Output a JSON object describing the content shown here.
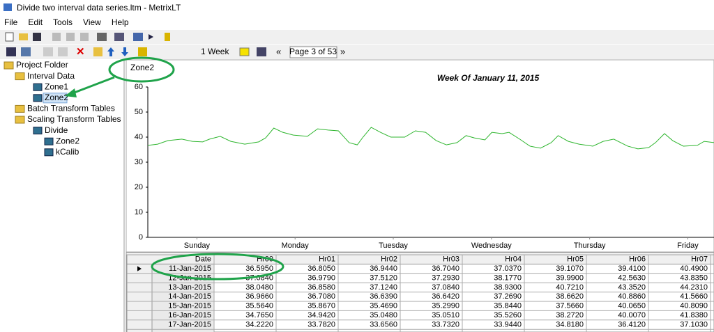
{
  "window": {
    "title": "Divide two interval data series.ltm - MetrixLT"
  },
  "menu": [
    "File",
    "Edit",
    "Tools",
    "View",
    "Help"
  ],
  "toolbar": {
    "period": "1 Week",
    "page": "Page 3 of 53"
  },
  "tree": [
    {
      "label": "Project Folder",
      "level": 0
    },
    {
      "label": "Interval Data",
      "level": 1
    },
    {
      "label": "Zone1",
      "level": 2
    },
    {
      "label": "Zone2",
      "level": 2
    },
    {
      "label": "Batch Transform Tables",
      "level": 1
    },
    {
      "label": "Scaling Transform Tables",
      "level": 1
    },
    {
      "label": "Divide",
      "level": 2
    },
    {
      "label": "Zone2",
      "level": 3
    },
    {
      "label": "kCalib",
      "level": 3
    }
  ],
  "chart_label": "Zone2",
  "chart_data": {
    "type": "line",
    "title": "Week Of January 11, 2015",
    "x": [
      0,
      2.4,
      4.9,
      8.3,
      10.9,
      13.4,
      15.1,
      17.7,
      20.3,
      23.7,
      27.1,
      28.8,
      30.8,
      33.0,
      35.6,
      39.0,
      41.5,
      44.1,
      46.6,
      49.2,
      51.2,
      52.6,
      54.6,
      56.9,
      59.4,
      62.8,
      65.4,
      67.9,
      70.5,
      73.0,
      75.6,
      77.8,
      79.8,
      82.4,
      84.1,
      86.6,
      88.3,
      90.9,
      93.4,
      96.0,
      98.6,
      100.3,
      102.8,
      105.4,
      108.8,
      111.3,
      113.9,
      117.3,
      119.8,
      122.4,
      124.1,
      126.3,
      128.3,
      130.9,
      134.3,
      136.0,
      138.4
    ],
    "values": [
      36.7,
      37.2,
      38.6,
      39.2,
      38.3,
      38.1,
      39.2,
      40.3,
      38.3,
      37.2,
      38.1,
      39.7,
      43.6,
      41.9,
      40.8,
      40.3,
      43.3,
      42.8,
      42.5,
      37.8,
      36.9,
      40.0,
      43.9,
      41.9,
      40.0,
      40.0,
      42.5,
      41.9,
      38.6,
      36.9,
      37.8,
      40.6,
      39.7,
      38.9,
      41.9,
      41.4,
      41.9,
      39.2,
      36.4,
      35.6,
      37.8,
      40.6,
      38.3,
      37.2,
      36.4,
      38.3,
      39.2,
      36.4,
      35.3,
      35.8,
      37.8,
      41.4,
      38.6,
      36.4,
      36.7,
      38.3,
      37.8
    ],
    "color": "#2db52d",
    "xlim": [
      0,
      138.4
    ],
    "xticks": [
      {
        "value": 12,
        "label": "Sunday"
      },
      {
        "value": 36,
        "label": "Monday"
      },
      {
        "value": 60,
        "label": "Tuesday"
      },
      {
        "value": 84,
        "label": "Wednesday"
      },
      {
        "value": 108,
        "label": "Thursday"
      },
      {
        "value": 132,
        "label": "Friday"
      }
    ],
    "ylim": [
      0,
      60
    ],
    "yticks": [
      0,
      10,
      20,
      30,
      40,
      50,
      60
    ]
  },
  "table": {
    "columns": [
      "Date",
      "Hr00",
      "Hr01",
      "Hr02",
      "Hr03",
      "Hr04",
      "Hr05",
      "Hr06",
      "Hr07"
    ],
    "rows": [
      [
        "11-Jan-2015",
        "36.5950",
        "36.8050",
        "36.9440",
        "36.7040",
        "37.0370",
        "39.1070",
        "39.4100",
        "40.4900"
      ],
      [
        "12-Jan-2015",
        "37.0840",
        "36.9790",
        "37.5120",
        "37.2930",
        "38.1770",
        "39.9900",
        "42.5630",
        "43.8350"
      ],
      [
        "13-Jan-2015",
        "38.0480",
        "36.8580",
        "37.1240",
        "37.0840",
        "38.9300",
        "40.7210",
        "43.3520",
        "44.2310"
      ],
      [
        "14-Jan-2015",
        "36.9660",
        "36.7080",
        "36.6390",
        "36.6420",
        "37.2690",
        "38.6620",
        "40.8860",
        "41.5660"
      ],
      [
        "15-Jan-2015",
        "35.5640",
        "35.8670",
        "35.4690",
        "35.2990",
        "35.8440",
        "37.5660",
        "40.0650",
        "40.8090"
      ],
      [
        "16-Jan-2015",
        "34.7650",
        "34.9420",
        "35.0480",
        "35.0510",
        "35.5260",
        "38.2720",
        "40.0070",
        "41.8380"
      ],
      [
        "17-Jan-2015",
        "34.2220",
        "33.7820",
        "33.6560",
        "33.7320",
        "33.9440",
        "34.8180",
        "36.4120",
        "37.1030"
      ]
    ]
  }
}
